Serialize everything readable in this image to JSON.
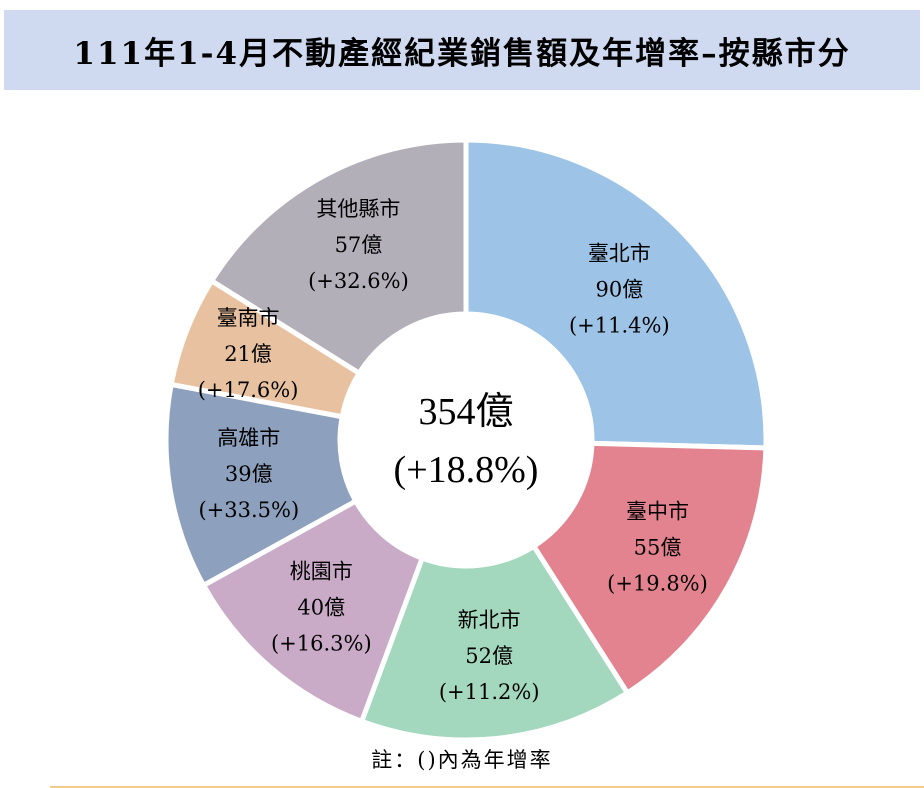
{
  "chart_data": {
    "type": "pie",
    "variant": "donut",
    "title": "111年1-4月不動產經紀業銷售額及年增率–按縣市分",
    "unit": "億",
    "center": {
      "total": "354億",
      "growth": "(+18.8%)"
    },
    "slices": [
      {
        "name": "臺北市",
        "value": 90,
        "value_label": "90億",
        "growth": 11.4,
        "growth_label": "(+11.4%)",
        "color": "#9dc3e6"
      },
      {
        "name": "臺中市",
        "value": 55,
        "value_label": "55億",
        "growth": 19.8,
        "growth_label": "(+19.8%)",
        "color": "#e3838f"
      },
      {
        "name": "新北市",
        "value": 52,
        "value_label": "52億",
        "growth": 11.2,
        "growth_label": "(+11.2%)",
        "color": "#a4d8be"
      },
      {
        "name": "桃園市",
        "value": 40,
        "value_label": "40億",
        "growth": 16.3,
        "growth_label": "(+16.3%)",
        "color": "#c9abc7"
      },
      {
        "name": "高雄市",
        "value": 39,
        "value_label": "39億",
        "growth": 33.5,
        "growth_label": "(+33.5%)",
        "color": "#8da0bd"
      },
      {
        "name": "臺南市",
        "value": 21,
        "value_label": "21億",
        "growth": 17.6,
        "growth_label": "(+17.6%)",
        "color": "#e8c1a0"
      },
      {
        "name": "其他縣市",
        "value": 57,
        "value_label": "57億",
        "growth": 32.6,
        "growth_label": "(+32.6%)",
        "color": "#b2afb9"
      }
    ],
    "note": "註：()內為年增率",
    "legend": "none"
  }
}
